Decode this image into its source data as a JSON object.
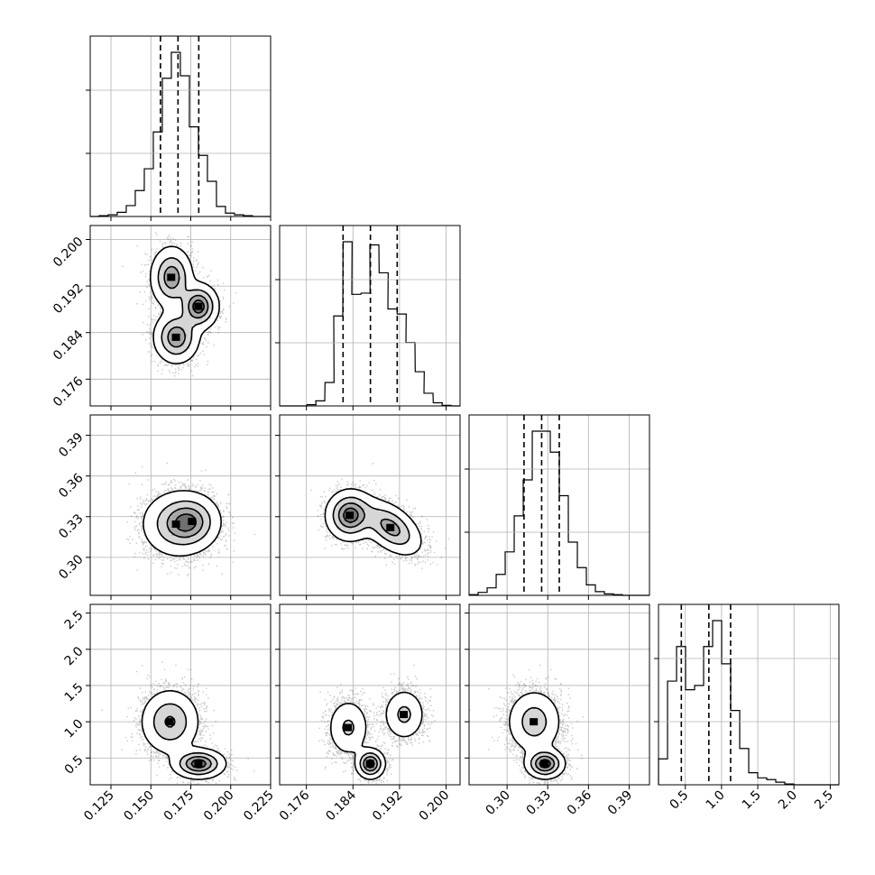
{
  "chart_data": {
    "type": "corner",
    "grid": true,
    "colors": {
      "hist": "#000000",
      "scatter": "#000000",
      "grid": "#b0b0b0"
    },
    "parameters": [
      {
        "range": [
          0.112,
          0.225
        ],
        "ticks": [
          0.125,
          0.15,
          0.175,
          0.2,
          0.225
        ],
        "tick_labels": [
          "0.125",
          "0.150",
          "0.175",
          "0.200",
          "0.225"
        ],
        "quantiles": [
          0.156,
          0.167,
          0.18
        ],
        "hist_x": [
          0.112,
          0.1176,
          0.1233,
          0.1289,
          0.1346,
          0.1402,
          0.1459,
          0.1515,
          0.1572,
          0.1628,
          0.1685,
          0.1741,
          0.1798,
          0.1854,
          0.1911,
          0.1967,
          0.2024,
          0.208,
          0.2137,
          0.2193
        ],
        "hist_counts": [
          0,
          1,
          2,
          5,
          13,
          31,
          57,
          101,
          165,
          196,
          168,
          107,
          73,
          42,
          12,
          4,
          2,
          1,
          0,
          0
        ]
      },
      {
        "range": [
          0.1714,
          0.2024
        ],
        "ticks": [
          0.176,
          0.184,
          0.192,
          0.2
        ],
        "tick_labels": [
          "0.176",
          "0.184",
          "0.192",
          "0.200"
        ],
        "quantiles": [
          0.1823,
          0.187,
          0.1916
        ],
        "hist_x": [
          0.1714,
          0.173,
          0.1745,
          0.1761,
          0.1776,
          0.1792,
          0.1807,
          0.1823,
          0.1838,
          0.1854,
          0.1869,
          0.1885,
          0.19,
          0.1916,
          0.1931,
          0.1947,
          0.1962,
          0.1978,
          0.1993,
          0.2009
        ],
        "hist_counts": [
          0,
          0,
          0,
          2,
          8,
          37,
          142,
          259,
          176,
          178,
          254,
          210,
          153,
          145,
          100,
          54,
          20,
          5,
          1,
          0
        ]
      },
      {
        "range": [
          0.272,
          0.405
        ],
        "ticks": [
          0.3,
          0.33,
          0.36,
          0.39
        ],
        "tick_labels": [
          "0.30",
          "0.33",
          "0.36",
          "0.39"
        ],
        "quantiles": [
          0.3125,
          0.3255,
          0.3385
        ],
        "hist_x": [
          0.272,
          0.2787,
          0.2853,
          0.292,
          0.2986,
          0.3053,
          0.3119,
          0.3186,
          0.3252,
          0.3319,
          0.3385,
          0.3452,
          0.3518,
          0.3585,
          0.3651,
          0.3718,
          0.3784,
          0.3851,
          0.3917,
          0.3984
        ],
        "hist_counts": [
          1,
          4,
          10,
          28,
          58,
          106,
          154,
          219,
          219,
          191,
          133,
          71,
          37,
          14,
          5,
          2,
          1,
          0,
          0,
          0
        ]
      },
      {
        "range": [
          0.13,
          2.62
        ],
        "ticks": [
          0.5,
          1.0,
          1.5,
          2.0,
          2.5
        ],
        "tick_labels": [
          "0.5",
          "1.0",
          "1.5",
          "2.0",
          "2.5"
        ],
        "quantiles": [
          0.445,
          0.825,
          1.125
        ],
        "hist_x": [
          0.13,
          0.2545,
          0.379,
          0.5035,
          0.628,
          0.7525,
          0.877,
          1.0015,
          1.126,
          1.2505,
          1.375,
          1.4995,
          1.624,
          1.7485,
          1.873,
          1.9975,
          2.122,
          2.2465,
          2.371,
          2.4955
        ],
        "hist_counts": [
          3,
          12,
          16,
          11,
          11.5,
          16,
          19,
          14,
          8.6,
          4.2,
          1.4,
          0.8,
          0.6,
          0.3,
          0.1,
          0,
          0,
          0,
          0,
          0
        ]
      }
    ],
    "pairs": [
      {
        "row": 1,
        "col": 0,
        "modes": [
          {
            "x": 0.163,
            "y": 0.1935,
            "sx": 0.0065,
            "sy": 0.0026,
            "r": 0,
            "w": 0.36
          },
          {
            "x": 0.18,
            "y": 0.1885,
            "sx": 0.006,
            "sy": 0.0019,
            "r": 0,
            "w": 0.3
          },
          {
            "x": 0.166,
            "y": 0.1832,
            "sx": 0.007,
            "sy": 0.0022,
            "r": 0,
            "w": 0.34
          }
        ]
      },
      {
        "row": 2,
        "col": 0,
        "modes": [
          {
            "x": 0.166,
            "y": 0.3245,
            "sx": 0.011,
            "sy": 0.012,
            "r": 0,
            "w": 0.6
          },
          {
            "x": 0.176,
            "y": 0.3265,
            "sx": 0.009,
            "sy": 0.01,
            "r": 0,
            "w": 0.4
          }
        ]
      },
      {
        "row": 2,
        "col": 1,
        "modes": [
          {
            "x": 0.1835,
            "y": 0.331,
            "sx": 0.002,
            "sy": 0.009,
            "r": 0,
            "w": 0.48
          },
          {
            "x": 0.1905,
            "y": 0.322,
            "sx": 0.0026,
            "sy": 0.01,
            "r": -0.5,
            "w": 0.52
          }
        ]
      },
      {
        "row": 3,
        "col": 0,
        "modes": [
          {
            "x": 0.162,
            "y": 1.0,
            "sx": 0.009,
            "sy": 0.22,
            "r": 0,
            "w": 0.62
          },
          {
            "x": 0.18,
            "y": 0.42,
            "sx": 0.008,
            "sy": 0.1,
            "r": 0,
            "w": 0.38
          }
        ]
      },
      {
        "row": 3,
        "col": 1,
        "modes": [
          {
            "x": 0.1832,
            "y": 0.92,
            "sx": 0.0018,
            "sy": 0.2,
            "r": 0,
            "w": 0.36
          },
          {
            "x": 0.187,
            "y": 0.42,
            "sx": 0.0012,
            "sy": 0.1,
            "r": 0,
            "w": 0.3
          },
          {
            "x": 0.1928,
            "y": 1.1,
            "sx": 0.0018,
            "sy": 0.18,
            "r": 0,
            "w": 0.34
          }
        ]
      },
      {
        "row": 3,
        "col": 2,
        "modes": [
          {
            "x": 0.32,
            "y": 1.0,
            "sx": 0.01,
            "sy": 0.22,
            "r": 0,
            "w": 0.62
          },
          {
            "x": 0.328,
            "y": 0.42,
            "sx": 0.007,
            "sy": 0.1,
            "r": 0,
            "w": 0.38
          }
        ]
      }
    ]
  }
}
